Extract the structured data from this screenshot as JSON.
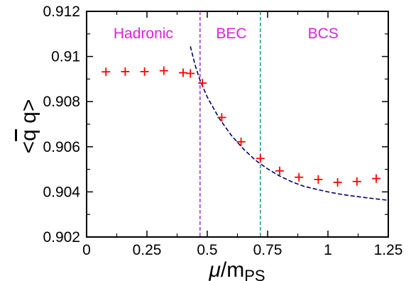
{
  "chart_data": {
    "type": "scatter",
    "title": "",
    "xlabel": {
      "italic": "μ",
      "main": "/m",
      "sub": "PS"
    },
    "ylabel": {
      "pre": "<",
      "bar": "q",
      "post": " q>"
    },
    "xlim": [
      0,
      1.25
    ],
    "ylim": [
      0.902,
      0.912
    ],
    "x_ticks": [
      "0",
      "0.25",
      "0.5",
      "0.75",
      "1",
      "1.25"
    ],
    "x_tick_values": [
      0,
      0.25,
      0.5,
      0.75,
      1,
      1.25
    ],
    "y_ticks": [
      "0.902",
      "0.904",
      "0.906",
      "0.908",
      "0.91",
      "0.912"
    ],
    "y_tick_values": [
      0.902,
      0.904,
      0.906,
      0.908,
      0.91,
      0.912
    ],
    "grid": false,
    "regions": [
      {
        "label": "Hadronic",
        "x_center": 0.235
      },
      {
        "label": "BEC",
        "x_center": 0.6
      },
      {
        "label": "BCS",
        "x_center": 0.98
      }
    ],
    "vlines": [
      {
        "x": 0.47,
        "color": "#9b30d0"
      },
      {
        "x": 0.72,
        "color": "#1a9a70"
      }
    ],
    "series": [
      {
        "marker": "+",
        "color": "#ff0000",
        "x": [
          0.08,
          0.16,
          0.24,
          0.32,
          0.4,
          0.43,
          0.48,
          0.56,
          0.64,
          0.72,
          0.8,
          0.88,
          0.96,
          1.04,
          1.12,
          1.2
        ],
        "y": [
          0.90932,
          0.90933,
          0.90933,
          0.90937,
          0.90928,
          0.90925,
          0.90882,
          0.9073,
          0.90622,
          0.90548,
          0.90493,
          0.90465,
          0.90455,
          0.90442,
          0.90446,
          0.90459
        ]
      }
    ],
    "fit_curve": {
      "style": "dashed",
      "color": "#00006e",
      "x": [
        0.43,
        0.45,
        0.47,
        0.5,
        0.55,
        0.6,
        0.65,
        0.7,
        0.75,
        0.8,
        0.85,
        0.9,
        0.95,
        1.0,
        1.05,
        1.1,
        1.15,
        1.2,
        1.25
      ],
      "y": [
        0.91045,
        0.9096,
        0.90895,
        0.9082,
        0.90725,
        0.9065,
        0.9059,
        0.9054,
        0.90502,
        0.9047,
        0.90445,
        0.90425,
        0.90412,
        0.904,
        0.9039,
        0.90382,
        0.90375,
        0.90369,
        0.90363
      ]
    },
    "colors": {
      "region_label": "#e020e0",
      "axis": "#000000"
    }
  }
}
